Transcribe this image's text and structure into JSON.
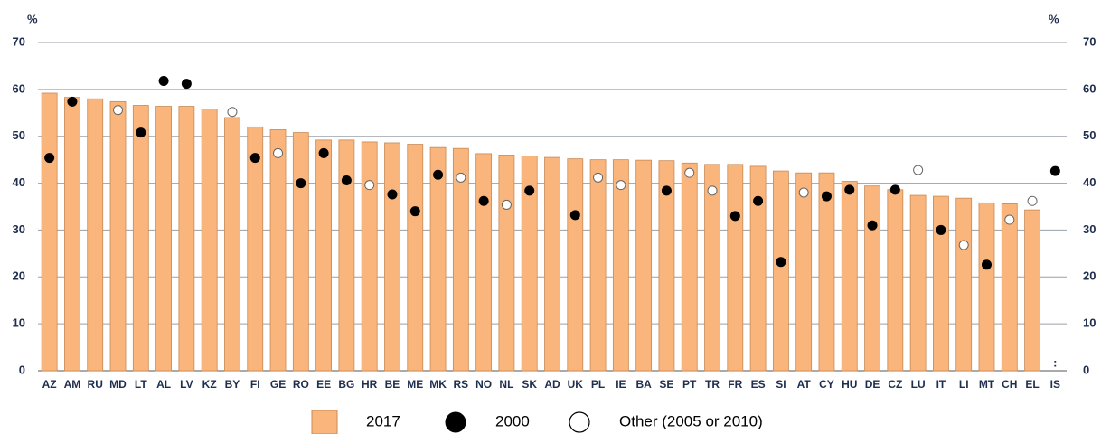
{
  "chart_data": {
    "type": "bar",
    "ylabel": "%",
    "y2label": "%",
    "categories": [
      "AZ",
      "AM",
      "RU",
      "MD",
      "LT",
      "AL",
      "LV",
      "KZ",
      "BY",
      "FI",
      "GE",
      "RO",
      "EE",
      "BG",
      "HR",
      "BE",
      "ME",
      "MK",
      "RS",
      "NO",
      "NL",
      "SK",
      "AD",
      "UK",
      "PL",
      "IE",
      "BA",
      "SE",
      "PT",
      "TR",
      "FR",
      "ES",
      "SI",
      "AT",
      "CY",
      "HU",
      "DE",
      "CZ",
      "LU",
      "IT",
      "LI",
      "MT",
      "CH",
      "EL",
      "IS"
    ],
    "series": [
      {
        "name": "2017",
        "color": "#f9b57b",
        "values": [
          59.2,
          58.3,
          58.0,
          57.4,
          56.6,
          56.4,
          56.4,
          55.8,
          54.0,
          52.0,
          51.4,
          50.8,
          49.2,
          49.2,
          48.8,
          48.6,
          48.3,
          47.6,
          47.4,
          46.3,
          46.0,
          45.8,
          45.5,
          45.2,
          45.0,
          45.0,
          44.9,
          44.8,
          44.3,
          44.0,
          44.0,
          43.6,
          42.6,
          42.2,
          42.2,
          40.4,
          39.4,
          38.6,
          37.4,
          37.2,
          36.8,
          35.8,
          35.6,
          34.3,
          null
        ],
        "value_labels": [
          null,
          null,
          null,
          null,
          null,
          null,
          null,
          null,
          null,
          null,
          null,
          null,
          null,
          null,
          null,
          null,
          null,
          null,
          null,
          null,
          null,
          null,
          null,
          null,
          null,
          null,
          null,
          null,
          null,
          null,
          null,
          null,
          null,
          null,
          null,
          null,
          null,
          null,
          null,
          null,
          null,
          null,
          null,
          null,
          ":"
        ]
      },
      {
        "name": "2000",
        "color": "#000000",
        "values": [
          45.4,
          57.4,
          null,
          null,
          50.8,
          61.8,
          61.2,
          null,
          null,
          45.4,
          null,
          40.0,
          46.4,
          40.6,
          null,
          37.6,
          34.0,
          41.8,
          null,
          36.2,
          null,
          38.4,
          null,
          33.2,
          null,
          null,
          null,
          38.4,
          null,
          null,
          33.0,
          36.2,
          23.2,
          null,
          37.2,
          38.6,
          31.0,
          38.6,
          null,
          30.0,
          null,
          22.6,
          null,
          null,
          42.6
        ]
      },
      {
        "name": "Other (2005 or 2010)",
        "color": "#ffffff",
        "values": [
          null,
          null,
          null,
          55.6,
          null,
          null,
          null,
          null,
          55.2,
          null,
          46.4,
          null,
          null,
          null,
          39.6,
          null,
          null,
          null,
          41.2,
          null,
          35.4,
          null,
          null,
          null,
          41.2,
          39.6,
          null,
          null,
          42.2,
          38.4,
          null,
          null,
          null,
          38.0,
          null,
          null,
          null,
          null,
          42.8,
          null,
          26.8,
          null,
          32.2,
          36.2,
          null
        ]
      }
    ],
    "ylim": [
      0,
      70
    ],
    "yticks": [
      0,
      10,
      20,
      30,
      40,
      50,
      60,
      70
    ],
    "y2lim": [
      0,
      70
    ],
    "y2ticks": [
      0,
      10,
      20,
      30,
      40,
      50,
      60,
      70
    ],
    "grid": true
  }
}
